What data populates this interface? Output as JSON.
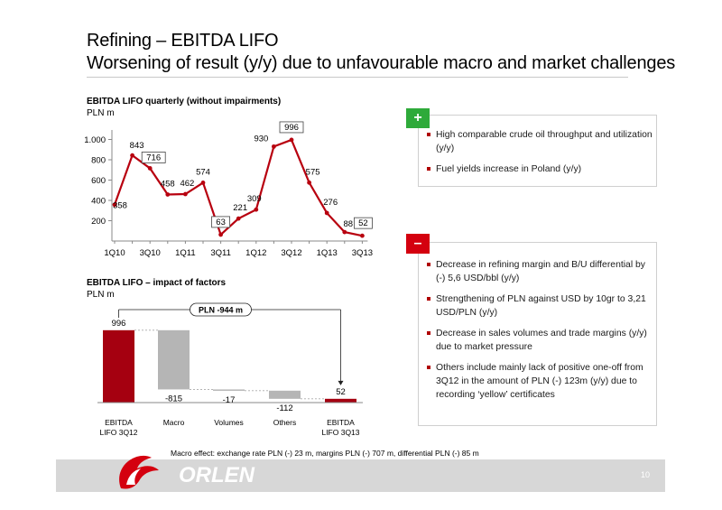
{
  "header": {
    "title_line1": "Refining – EBITDA LIFO",
    "title_line2": "Worsening of result (y/y) due to unfavourable macro and market challenges"
  },
  "chart_data": [
    {
      "type": "line",
      "title": "EBITDA LIFO quarterly (without impairments)",
      "unit": "PLN m",
      "ylim": [
        0,
        1000
      ],
      "y_ticks": [
        "200",
        "400",
        "600",
        "800",
        "1.000"
      ],
      "x_tick_labels": [
        "1Q10",
        "3Q10",
        "1Q11",
        "3Q11",
        "1Q12",
        "3Q12",
        "1Q13",
        "3Q13"
      ],
      "categories": [
        "1Q10",
        "2Q10",
        "3Q10",
        "4Q10",
        "1Q11",
        "2Q11",
        "3Q11",
        "4Q11",
        "1Q12",
        "2Q12",
        "3Q12",
        "4Q12",
        "1Q13",
        "2Q13",
        "3Q13"
      ],
      "values": [
        358,
        843,
        716,
        458,
        462,
        574,
        63,
        221,
        309,
        930,
        996,
        575,
        276,
        88,
        52
      ],
      "boxed_labels": [
        2,
        6,
        10,
        14
      ],
      "grid": false,
      "line_color": "#b8000f"
    },
    {
      "type": "bar",
      "subtype": "waterfall",
      "title": "EBITDA LIFO – impact of factors",
      "unit": "PLN m",
      "categories": [
        "EBITDA LIFO 3Q12",
        "Macro",
        "Volumes",
        "Others",
        "EBITDA LIFO 3Q13"
      ],
      "category_lines": [
        [
          "EBITDA",
          "LIFO 3Q12"
        ],
        [
          "Macro"
        ],
        [
          "Volumes"
        ],
        [
          "Others"
        ],
        [
          "EBITDA",
          "LIFO 3Q13"
        ]
      ],
      "values": [
        996,
        -815,
        -17,
        -112,
        52
      ],
      "value_labels": [
        "996",
        "-815",
        "-17",
        "-112",
        "52"
      ],
      "colors": [
        "#a50010",
        "#b5b5b5",
        "#b5b5b5",
        "#b5b5b5",
        "#a50010"
      ],
      "annotation": "PLN -944  m",
      "ylim": [
        0,
        1000
      ]
    }
  ],
  "plus_box": {
    "sign": "+",
    "sign_color": "#2eaa3a",
    "items": [
      "High comparable crude oil throughput and utilization (y/y)",
      "Fuel yields increase in Poland (y/y)"
    ]
  },
  "minus_box": {
    "sign": "–",
    "sign_color": "#d4000f",
    "items": [
      "Decrease in refining margin and B/U differential by (-) 5,6 USD/bbl (y/y)",
      "Strengthening of PLN against USD by 10gr to 3,21 USD/PLN (y/y)",
      "Decrease in sales volumes and trade margins (y/y) due to market pressure",
      "Others include mainly lack of positive one-off from 3Q12 in the amount of PLN (-) 123m (y/y) due to recording ‘yellow’ certificates"
    ]
  },
  "footnote": "Macro effect: exchange rate PLN (-) 23 m, margins PLN (-) 707 m, differential PLN (-) 85 m",
  "footer": {
    "logo_text": "ORLEN",
    "page_number": "10"
  }
}
